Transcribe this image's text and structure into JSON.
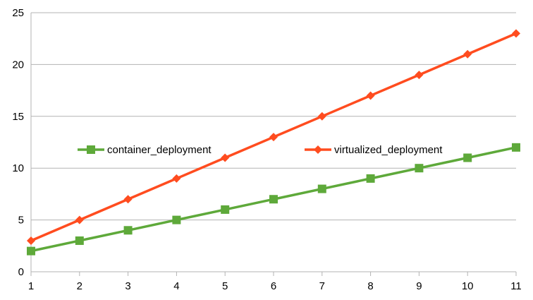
{
  "chart_data": {
    "type": "line",
    "title": "",
    "xlabel": "",
    "ylabel": "",
    "x": [
      1,
      2,
      3,
      4,
      5,
      6,
      7,
      8,
      9,
      10,
      11
    ],
    "xlim": [
      1,
      11
    ],
    "ylim": [
      0,
      25
    ],
    "y_ticks": [
      0,
      5,
      10,
      15,
      20,
      25
    ],
    "x_ticks": [
      1,
      2,
      3,
      4,
      5,
      6,
      7,
      8,
      9,
      10,
      11
    ],
    "grid": "horizontal",
    "legend_placement": "middle",
    "series": [
      {
        "name": "container_deployment",
        "color": "#5ea93a",
        "marker": "square",
        "values": [
          2,
          3,
          4,
          5,
          6,
          7,
          8,
          9,
          10,
          11,
          12
        ]
      },
      {
        "name": "virtualized_deployment",
        "color": "#ff4c1f",
        "marker": "diamond",
        "values": [
          3,
          5,
          7,
          9,
          11,
          13,
          15,
          17,
          19,
          21,
          23
        ]
      }
    ]
  }
}
